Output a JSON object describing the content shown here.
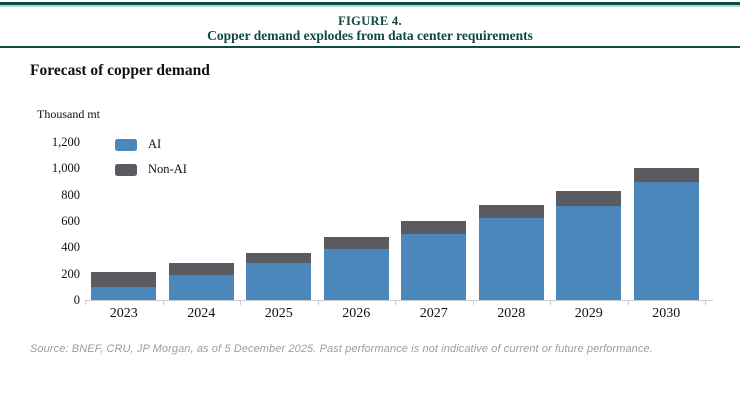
{
  "header": {
    "figure_label": "FIGURE 4.",
    "title": "Copper demand explodes from data center requirements"
  },
  "chart_data": {
    "type": "bar",
    "stacked": true,
    "title": "Forecast of copper demand",
    "unit_label": "Thousand mt",
    "categories": [
      "2023",
      "2024",
      "2025",
      "2026",
      "2027",
      "2028",
      "2029",
      "2030"
    ],
    "series": [
      {
        "name": "AI",
        "color": "#4c87bb",
        "values": [
          100,
          190,
          280,
          390,
          500,
          625,
          715,
          895
        ]
      },
      {
        "name": "Non-AI",
        "color": "#595b60",
        "values": [
          110,
          90,
          80,
          85,
          100,
          100,
          110,
          105
        ]
      }
    ],
    "totals": [
      210,
      280,
      360,
      475,
      600,
      725,
      825,
      1000
    ],
    "ylim": [
      0,
      1200
    ],
    "y_ticks": [
      "0",
      "200",
      "400",
      "600",
      "800",
      "1,000",
      "1,200"
    ],
    "grid": false,
    "legend_position": "top-left"
  },
  "footer": {
    "source": "Source: BNEF, CRU, JP Morgan, as of 5 December 2025. Past performance is not indicative of current or future performance."
  },
  "colors": {
    "accent_green": "#0d4b43",
    "accent_green_light": "#b6d6d0",
    "ai_blue": "#4c87bb",
    "non_ai_gray": "#595b60",
    "axis_gray": "#c9cdd0",
    "source_text_gray": "#999ea2"
  }
}
